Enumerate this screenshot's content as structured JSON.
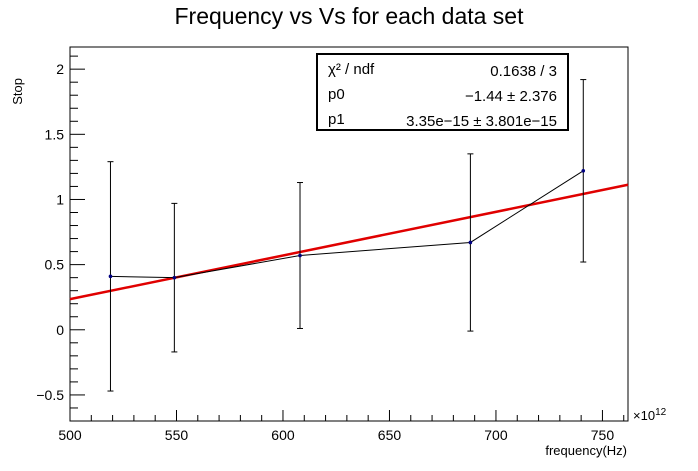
{
  "chart_data": {
    "type": "scatter",
    "title": "Frequency vs Vs for each data set",
    "xlabel": "frequency(Hz)",
    "ylabel": "Stop",
    "x_exponent_label": "×10",
    "x_exponent_power": "12",
    "xlim": [
      500,
      762
    ],
    "ylim": [
      -0.7,
      2.17
    ],
    "x_ticks": [
      500,
      550,
      600,
      650,
      700,
      750
    ],
    "x_tick_labels": [
      "500",
      "550",
      "600",
      "650",
      "700",
      "750"
    ],
    "y_ticks": [
      -0.5,
      0,
      0.5,
      1,
      1.5,
      2
    ],
    "y_tick_labels": [
      "−0.5",
      "0",
      "0.5",
      "1",
      "1.5",
      "2"
    ],
    "series": [
      {
        "points": [
          {
            "x": 519,
            "y": 0.41,
            "err": 0.88
          },
          {
            "x": 549,
            "y": 0.4,
            "err": 0.57
          },
          {
            "x": 608,
            "y": 0.57,
            "err": 0.56
          },
          {
            "x": 688,
            "y": 0.67,
            "err": 0.68
          },
          {
            "x": 741,
            "y": 1.22,
            "err": 0.7
          }
        ],
        "color": "#000080",
        "line_color": "#000000"
      }
    ],
    "fit": {
      "color": "#e00000",
      "p0": -1.44,
      "p1_per_1e12": 3.35
    },
    "grid": false,
    "stats_box": {
      "rows": [
        {
          "label": "χ² / ndf",
          "value": "0.1638 / 3"
        },
        {
          "label": "p0",
          "value": "−1.44 ± 2.376"
        },
        {
          "label": "p1",
          "value": "3.35e−15 ± 3.801e−15"
        }
      ]
    }
  }
}
